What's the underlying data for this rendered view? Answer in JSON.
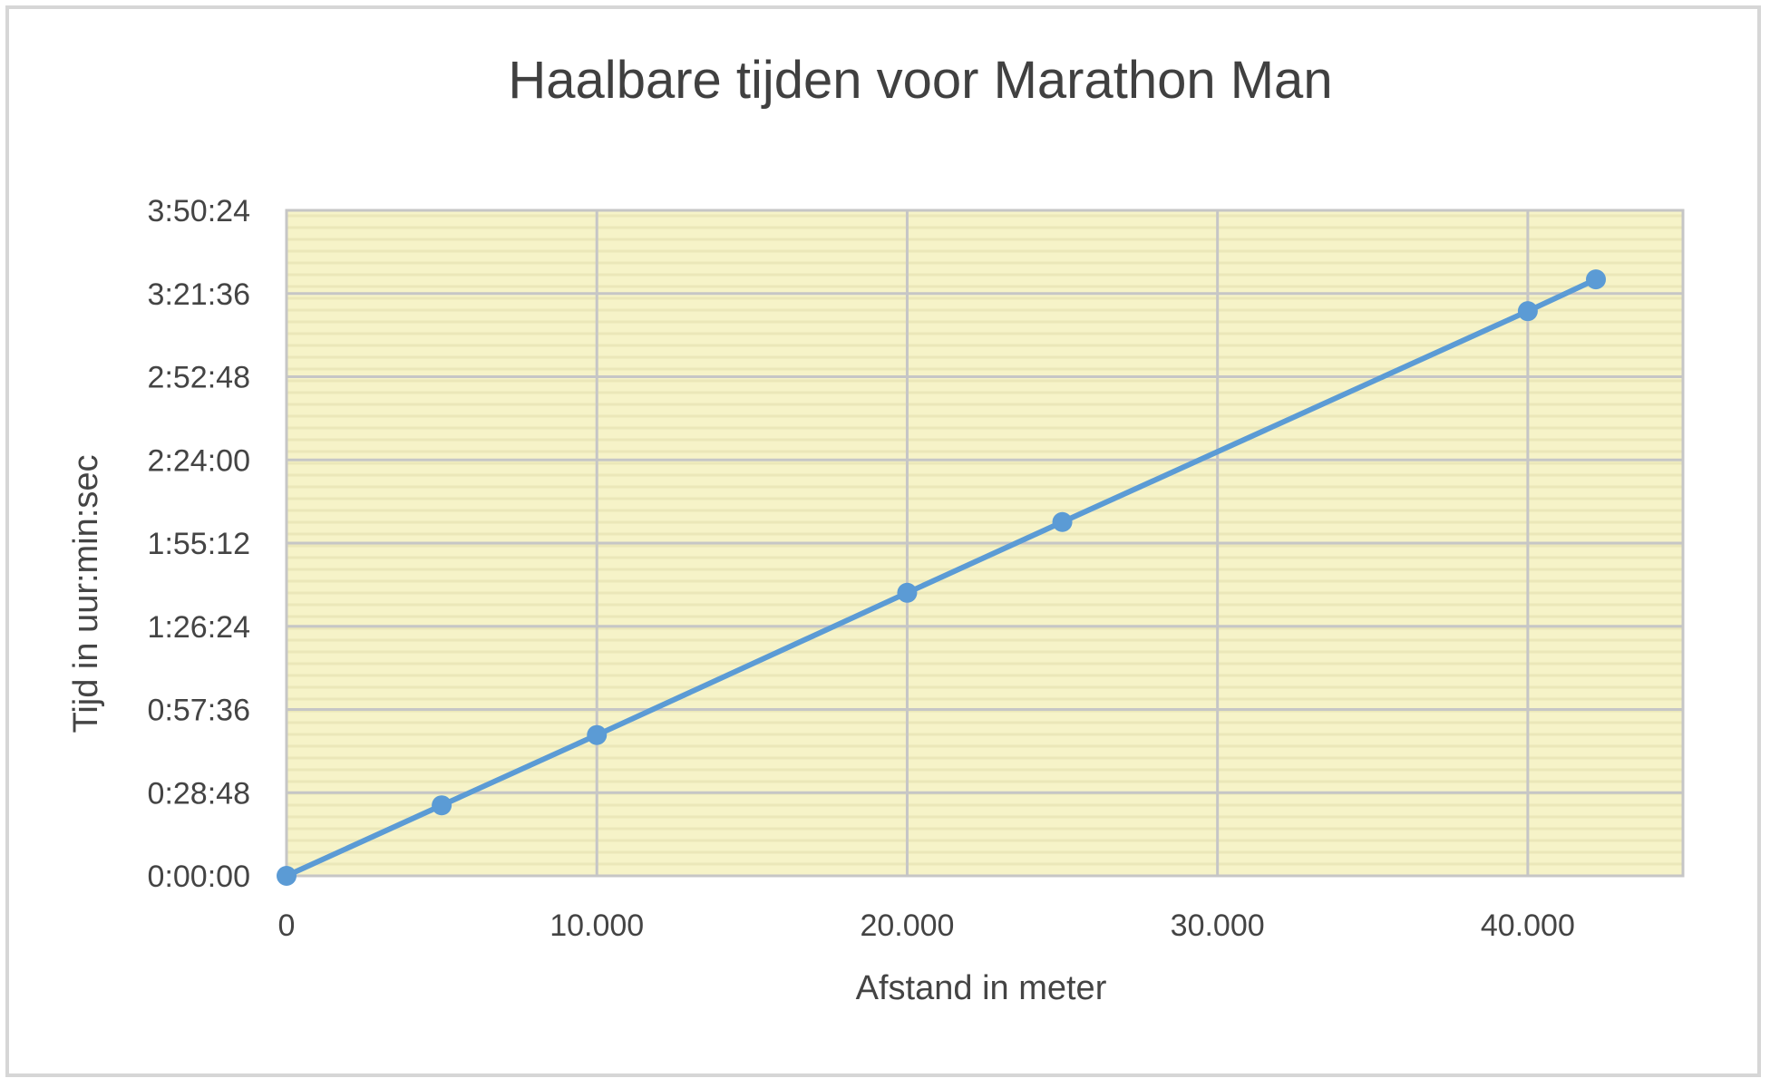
{
  "chart_data": {
    "type": "line",
    "title": "Haalbare tijden voor Marathon Man",
    "xlabel": "Afstand in meter",
    "ylabel": "Tijd in uur:min:sec",
    "xlim": [
      0,
      45000
    ],
    "ylim": [
      0,
      13824
    ],
    "x_ticks": [
      0,
      10000,
      20000,
      30000,
      40000
    ],
    "x_tick_labels": [
      "0",
      "10.000",
      "20.000",
      "30.000",
      "40.000"
    ],
    "y_ticks": [
      0,
      1728,
      3456,
      5184,
      6912,
      8640,
      10368,
      12096,
      13824
    ],
    "y_tick_labels": [
      "0:00:00",
      "0:28:48",
      "0:57:36",
      "1:26:24",
      "1:55:12",
      "2:24:00",
      "2:52:48",
      "3:21:36",
      "3:50:24"
    ],
    "grid": true,
    "legend": "none",
    "series": [
      {
        "x": [
          0,
          5000,
          10000,
          20000,
          25000,
          40000,
          42195
        ],
        "y": [
          0,
          1465,
          2925,
          5880,
          7350,
          11730,
          12390
        ]
      }
    ],
    "colors": {
      "line": "#5b9bd5",
      "plot_background": "#f6f3c8",
      "minor_stripe": "#ebe7b9",
      "gridline": "#c6c6c6",
      "frame_border": "#d6d6d6"
    }
  }
}
